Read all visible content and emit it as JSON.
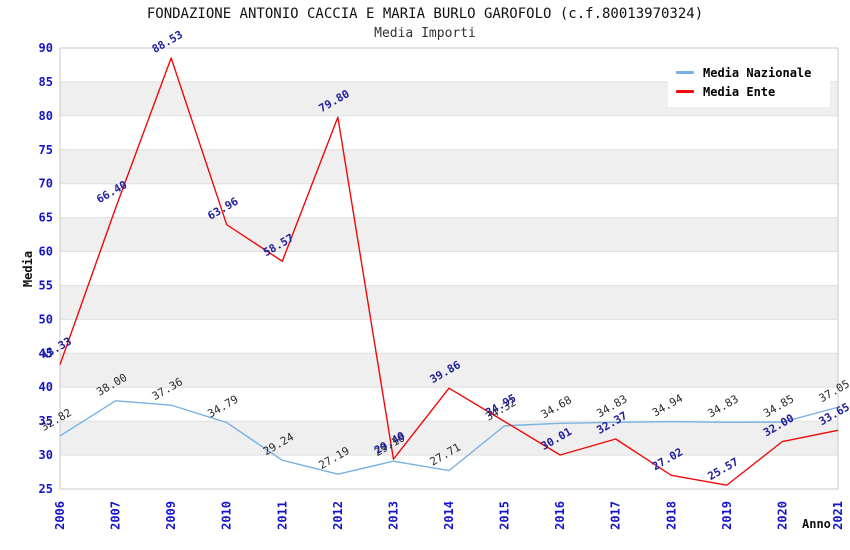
{
  "title": "FONDAZIONE ANTONIO CACCIA E MARIA BURLO GAROFOLO (c.f.80013970324)",
  "subtitle": "Media Importi",
  "chart_data": {
    "type": "line",
    "x": [
      "2006",
      "2007",
      "2009",
      "2010",
      "2011",
      "2012",
      "2013",
      "2014",
      "2015",
      "2016",
      "2017",
      "2018",
      "2019",
      "2020",
      "2021"
    ],
    "series": [
      {
        "name": "Media Nazionale",
        "color": "#79b1e3",
        "label_color": "#2b2b2b",
        "values": [
          32.82,
          38.0,
          37.36,
          34.79,
          29.24,
          27.19,
          29.1,
          27.71,
          34.32,
          34.68,
          34.83,
          34.94,
          34.83,
          34.85,
          37.05
        ]
      },
      {
        "name": "Media Ente",
        "color": "#ef0a0a",
        "label_color": "#22229a",
        "values": [
          43.33,
          66.4,
          88.53,
          63.96,
          58.57,
          79.8,
          29.4,
          39.86,
          34.95,
          30.01,
          32.37,
          27.02,
          25.57,
          32.0,
          33.65
        ]
      }
    ],
    "xlabel": "Anno",
    "ylabel": "Media",
    "ylim": [
      25,
      90
    ],
    "ytick_step": 5,
    "legend_position": "top-right",
    "grid": "horizontal-bands"
  },
  "colors": {
    "tick_label": "#1414cc",
    "band_fill": "#efefef",
    "gridline": "#e0e0e0",
    "plot_border": "#c9c9c9"
  }
}
